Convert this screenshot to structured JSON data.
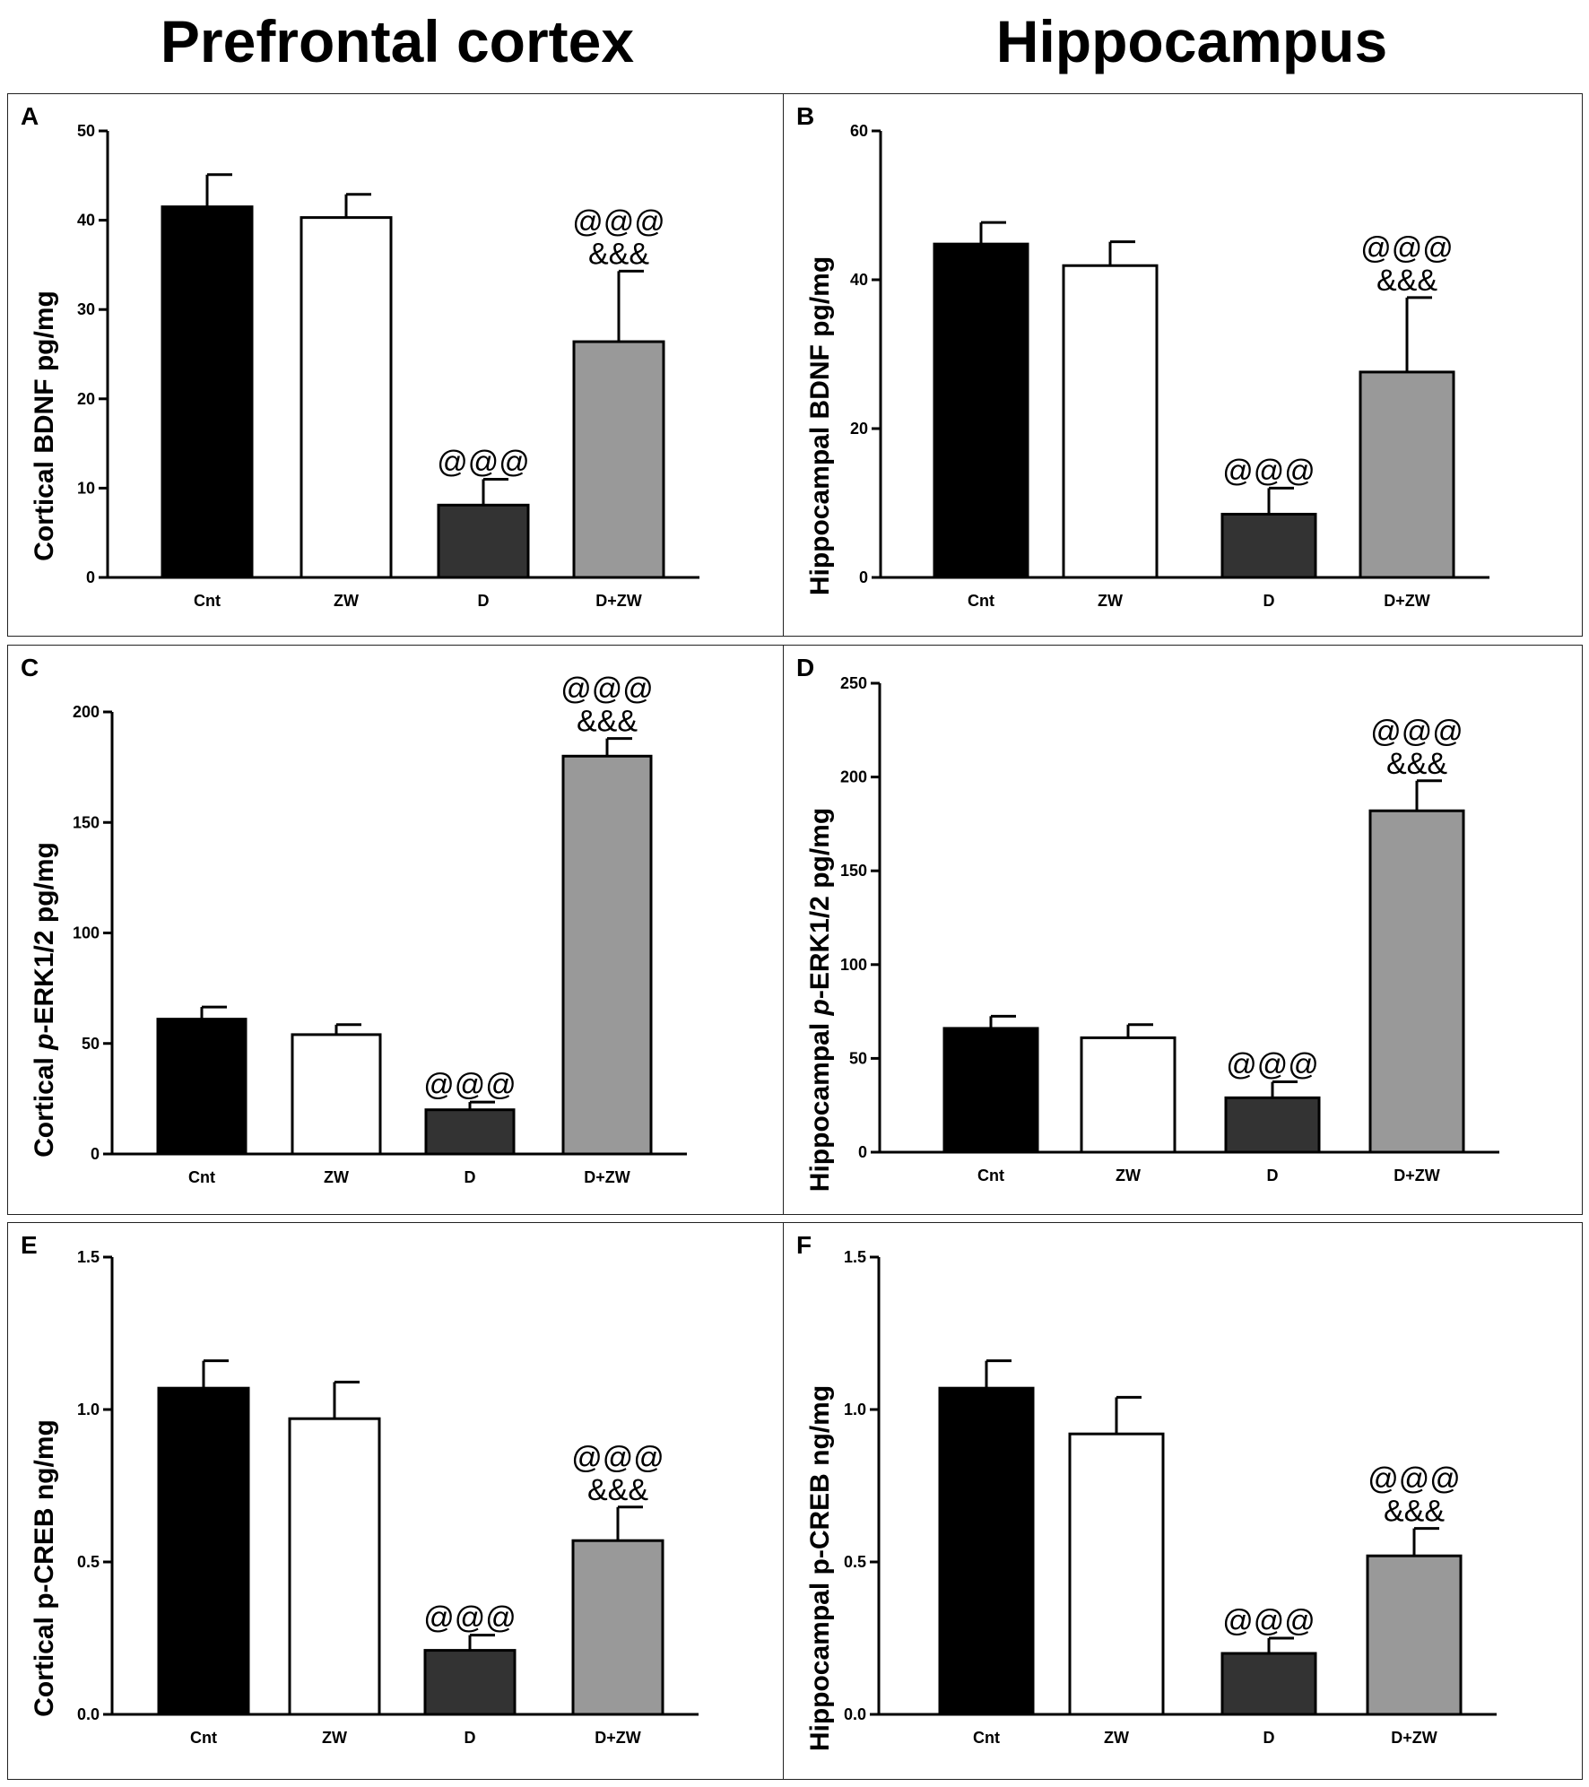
{
  "titles": {
    "left": "Prefrontal cortex",
    "right": "Hippocampus"
  },
  "chart_data": [
    {
      "type": "bar",
      "letter": "A",
      "ylabel": [
        "Cortical BDNF pg/mg"
      ],
      "categories": [
        "Cnt",
        "ZW",
        "D",
        "D+ZW"
      ],
      "values": [
        41.5,
        40.3,
        8.1,
        26.4
      ],
      "errors": [
        3.6,
        2.6,
        2.9,
        7.9
      ],
      "fills": [
        "#000000",
        "#ffffff",
        "#333333",
        "#999999"
      ],
      "ylim": [
        0,
        50
      ],
      "ticks": [
        {
          "v": 0,
          "t": "0"
        },
        {
          "v": 10,
          "t": "10"
        },
        {
          "v": 20,
          "t": "20"
        },
        {
          "v": 30,
          "t": "30"
        },
        {
          "v": 40,
          "t": "40"
        },
        {
          "v": 50,
          "t": "50"
        }
      ],
      "annotations": [
        [],
        [],
        [
          "@@@"
        ],
        [
          "@@@",
          "&&&"
        ]
      ]
    },
    {
      "type": "bar",
      "letter": "B",
      "ylabel": [
        "Hippocampal BDNF pg/mg"
      ],
      "categories": [
        "Cnt",
        "ZW",
        "D",
        "D+ZW"
      ],
      "values": [
        44.8,
        41.9,
        8.5,
        27.6
      ],
      "errors": [
        2.9,
        3.2,
        3.5,
        10.0
      ],
      "fills": [
        "#000000",
        "#ffffff",
        "#333333",
        "#999999"
      ],
      "ylim": [
        0,
        60
      ],
      "ticks": [
        {
          "v": 0,
          "t": "0"
        },
        {
          "v": 20,
          "t": "20"
        },
        {
          "v": 40,
          "t": "40"
        },
        {
          "v": 60,
          "t": "60"
        }
      ],
      "annotations": [
        [],
        [],
        [
          "@@@"
        ],
        [
          "@@@",
          "&&&"
        ]
      ]
    },
    {
      "type": "bar",
      "letter": "C",
      "ylabel": [
        "Cortical ",
        "p",
        "-ERK1/2 pg/mg"
      ],
      "categories": [
        "Cnt",
        "ZW",
        "D",
        "D+ZW"
      ],
      "values": [
        61,
        54,
        20,
        180
      ],
      "errors": [
        5.5,
        4.5,
        3.5,
        8
      ],
      "fills": [
        "#000000",
        "#ffffff",
        "#333333",
        "#999999"
      ],
      "ylim": [
        0,
        200
      ],
      "ticks": [
        {
          "v": 0,
          "t": "0"
        },
        {
          "v": 50,
          "t": "50"
        },
        {
          "v": 100,
          "t": "100"
        },
        {
          "v": 150,
          "t": "150"
        },
        {
          "v": 200,
          "t": "200"
        }
      ],
      "annotations": [
        [],
        [],
        [
          "@@@"
        ],
        [
          "@@@",
          "&&&"
        ]
      ]
    },
    {
      "type": "bar",
      "letter": "D",
      "ylabel": [
        "Hippocampal ",
        "p",
        "-ERK1/2 pg/mg"
      ],
      "categories": [
        "Cnt",
        "ZW",
        "D",
        "D+ZW"
      ],
      "values": [
        66,
        61,
        29,
        182
      ],
      "errors": [
        6.5,
        7,
        8.5,
        16
      ],
      "fills": [
        "#000000",
        "#ffffff",
        "#333333",
        "#999999"
      ],
      "ylim": [
        0,
        250
      ],
      "ticks": [
        {
          "v": 0,
          "t": "0"
        },
        {
          "v": 50,
          "t": "50"
        },
        {
          "v": 100,
          "t": "100"
        },
        {
          "v": 150,
          "t": "150"
        },
        {
          "v": 200,
          "t": "200"
        },
        {
          "v": 250,
          "t": "250"
        }
      ],
      "annotations": [
        [],
        [],
        [
          "@@@"
        ],
        [
          "@@@",
          "&&&"
        ]
      ]
    },
    {
      "type": "bar",
      "letter": "E",
      "ylabel": [
        "Cortical p-CREB ng/mg"
      ],
      "categories": [
        "Cnt",
        "ZW",
        "D",
        "D+ZW"
      ],
      "values": [
        1.07,
        0.97,
        0.21,
        0.57
      ],
      "errors": [
        0.09,
        0.12,
        0.05,
        0.11
      ],
      "fills": [
        "#000000",
        "#ffffff",
        "#333333",
        "#999999"
      ],
      "ylim": [
        0,
        1.5
      ],
      "ticks": [
        {
          "v": 0,
          "t": "0.0"
        },
        {
          "v": 0.5,
          "t": "0.5"
        },
        {
          "v": 1.0,
          "t": "1.0"
        },
        {
          "v": 1.5,
          "t": "1.5"
        }
      ],
      "annotations": [
        [],
        [],
        [
          "@@@"
        ],
        [
          "@@@",
          "&&&"
        ]
      ]
    },
    {
      "type": "bar",
      "letter": "F",
      "ylabel": [
        "Hippocampal p-CREB ng/mg"
      ],
      "categories": [
        "Cnt",
        "ZW",
        "D",
        "D+ZW"
      ],
      "values": [
        1.07,
        0.92,
        0.2,
        0.52
      ],
      "errors": [
        0.09,
        0.12,
        0.05,
        0.09
      ],
      "fills": [
        "#000000",
        "#ffffff",
        "#333333",
        "#999999"
      ],
      "ylim": [
        0,
        1.5
      ],
      "ticks": [
        {
          "v": 0,
          "t": "0.0"
        },
        {
          "v": 0.5,
          "t": "0.5"
        },
        {
          "v": 1.0,
          "t": "1.0"
        },
        {
          "v": 1.5,
          "t": "1.5"
        }
      ],
      "annotations": [
        [],
        [],
        [
          "@@@"
        ],
        [
          "@@@",
          "&&&"
        ]
      ]
    }
  ]
}
